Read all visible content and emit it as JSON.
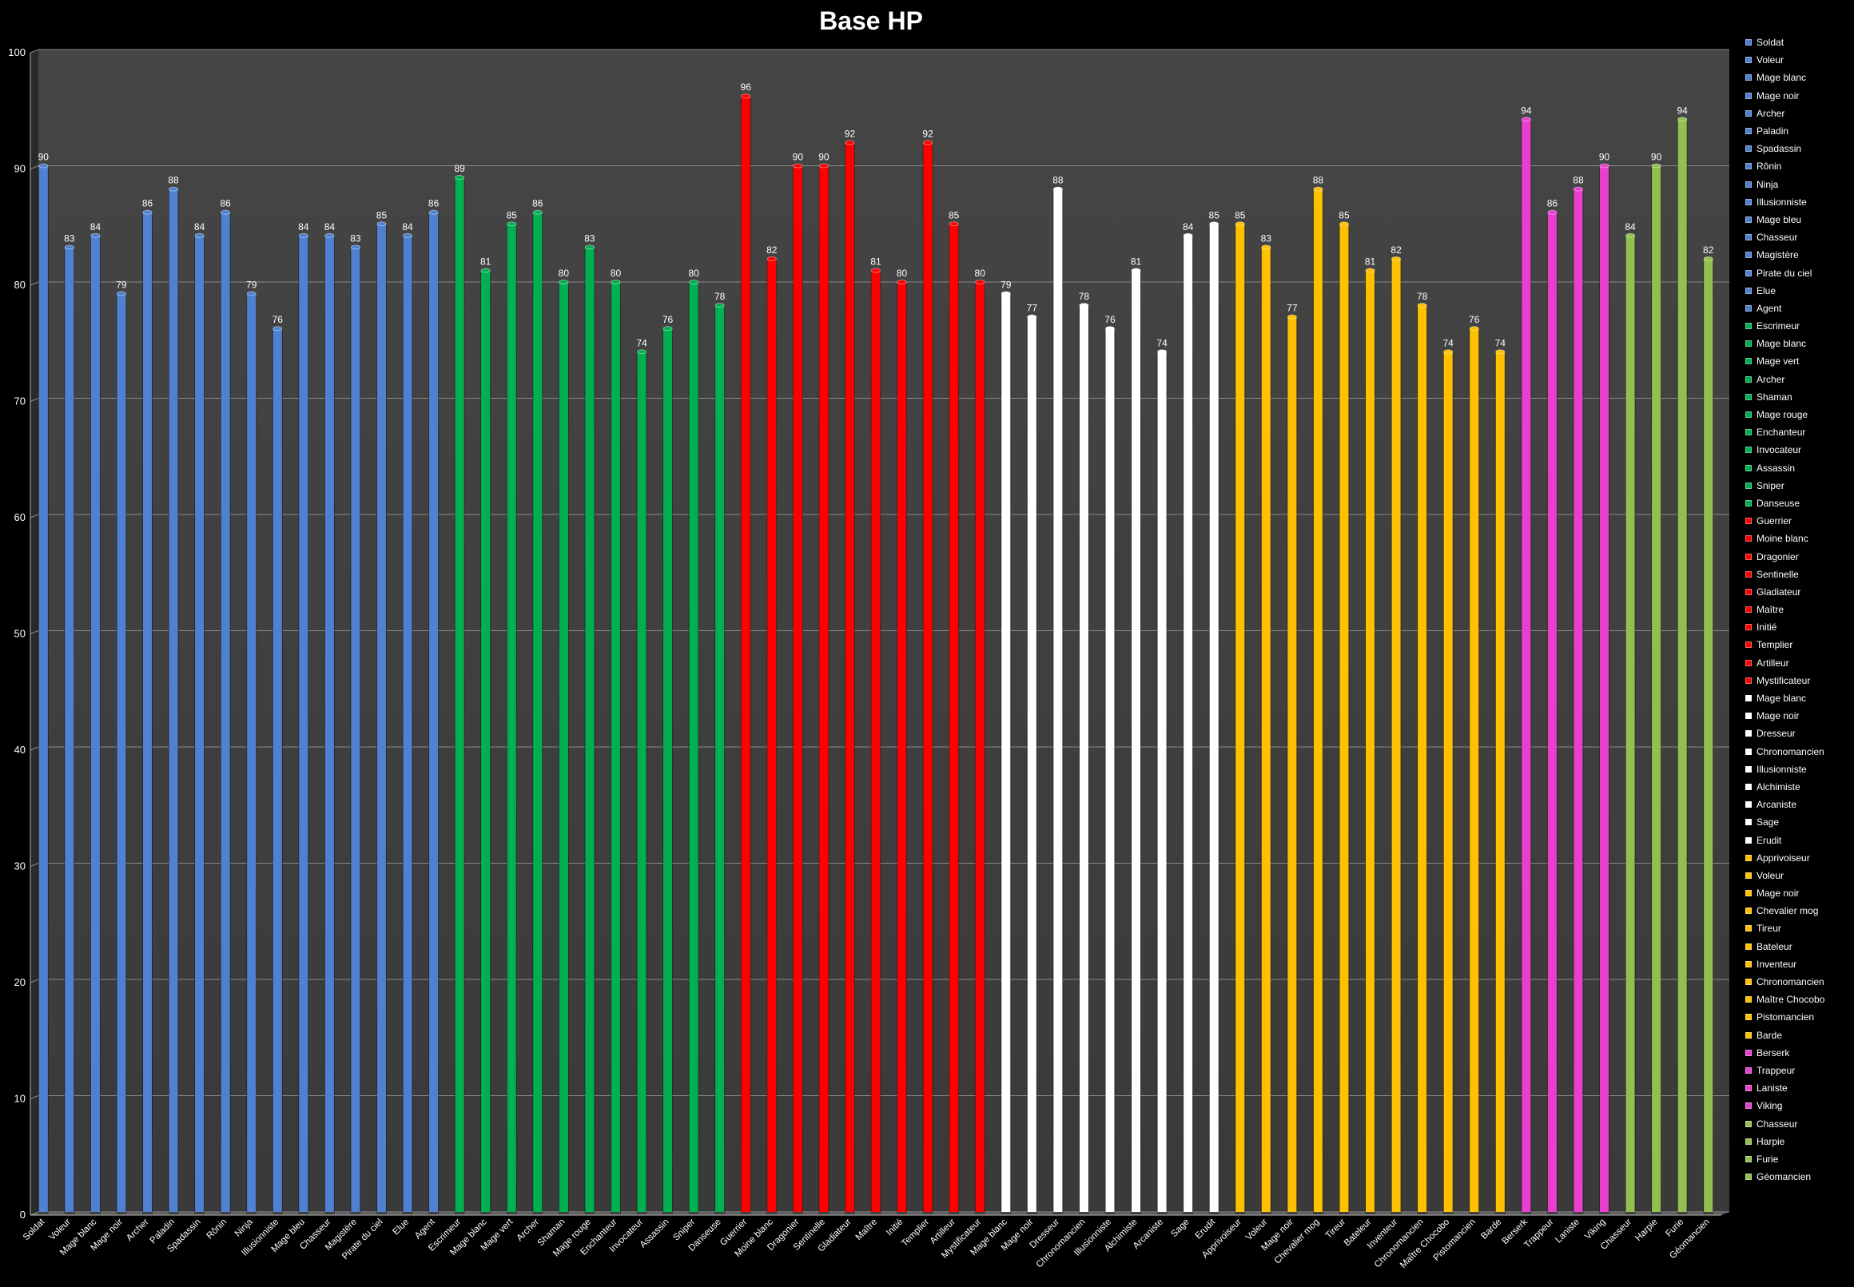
{
  "chart_data": {
    "type": "bar",
    "title": "Base HP",
    "xlabel": "",
    "ylabel": "",
    "ylim": [
      0,
      100
    ],
    "yticks": [
      0,
      10,
      20,
      30,
      40,
      50,
      60,
      70,
      80,
      90,
      100
    ],
    "grid": true,
    "legend_position": "right",
    "groups": [
      {
        "color": "#4f81d0",
        "categories": [
          "Soldat",
          "Voleur",
          "Mage blanc",
          "Mage noir",
          "Archer",
          "Paladin",
          "Spadassin",
          "Rônin",
          "Ninja",
          "Illusionniste",
          "Mage bleu",
          "Chasseur",
          "Magistère",
          "Pirate du ciel",
          "Elue",
          "Agent"
        ],
        "values": [
          90,
          83,
          84,
          79,
          86,
          88,
          84,
          86,
          79,
          76,
          84,
          84,
          83,
          85,
          84,
          86
        ]
      },
      {
        "color": "#00b050",
        "categories": [
          "Escrimeur",
          "Mage blanc",
          "Mage vert",
          "Archer",
          "Shaman",
          "Mage rouge",
          "Enchanteur",
          "Invocateur",
          "Assassin",
          "Sniper",
          "Danseuse"
        ],
        "values": [
          89,
          81,
          85,
          86,
          80,
          83,
          80,
          74,
          76,
          80,
          78
        ]
      },
      {
        "color": "#ff0000",
        "categories": [
          "Guerrier",
          "Moine blanc",
          "Dragonier",
          "Sentinelle",
          "Gladiateur",
          "Maître",
          "Initié",
          "Templier",
          "Artilleur",
          "Mystificateur"
        ],
        "values": [
          96,
          82,
          90,
          90,
          92,
          81,
          80,
          92,
          85,
          80
        ]
      },
      {
        "color": "#ffffff",
        "categories": [
          "Mage blanc",
          "Mage noir",
          "Dresseur",
          "Chronomancien",
          "Illusionniste",
          "Alchimiste",
          "Arcaniste",
          "Sage",
          "Erudit"
        ],
        "values": [
          79,
          77,
          88,
          78,
          76,
          81,
          74,
          84,
          85
        ]
      },
      {
        "color": "#ffc000",
        "categories": [
          "Apprivoiseur",
          "Voleur",
          "Mage noir",
          "Chevalier mog",
          "Tireur",
          "Bateleur",
          "Inventeur",
          "Chronomancien",
          "Maître Chocobo",
          "Pistomancien",
          "Barde"
        ],
        "values": [
          85,
          83,
          77,
          88,
          85,
          81,
          82,
          78,
          74,
          76,
          74
        ]
      },
      {
        "color": "#e83fcf",
        "categories": [
          "Berserk",
          "Trappeur",
          "Laniste",
          "Viking"
        ],
        "values": [
          94,
          86,
          88,
          90
        ]
      },
      {
        "color": "#92c050",
        "categories": [
          "Chasseur",
          "Harpie",
          "Furie",
          "Géomancien"
        ],
        "values": [
          84,
          90,
          94,
          82
        ]
      }
    ]
  }
}
